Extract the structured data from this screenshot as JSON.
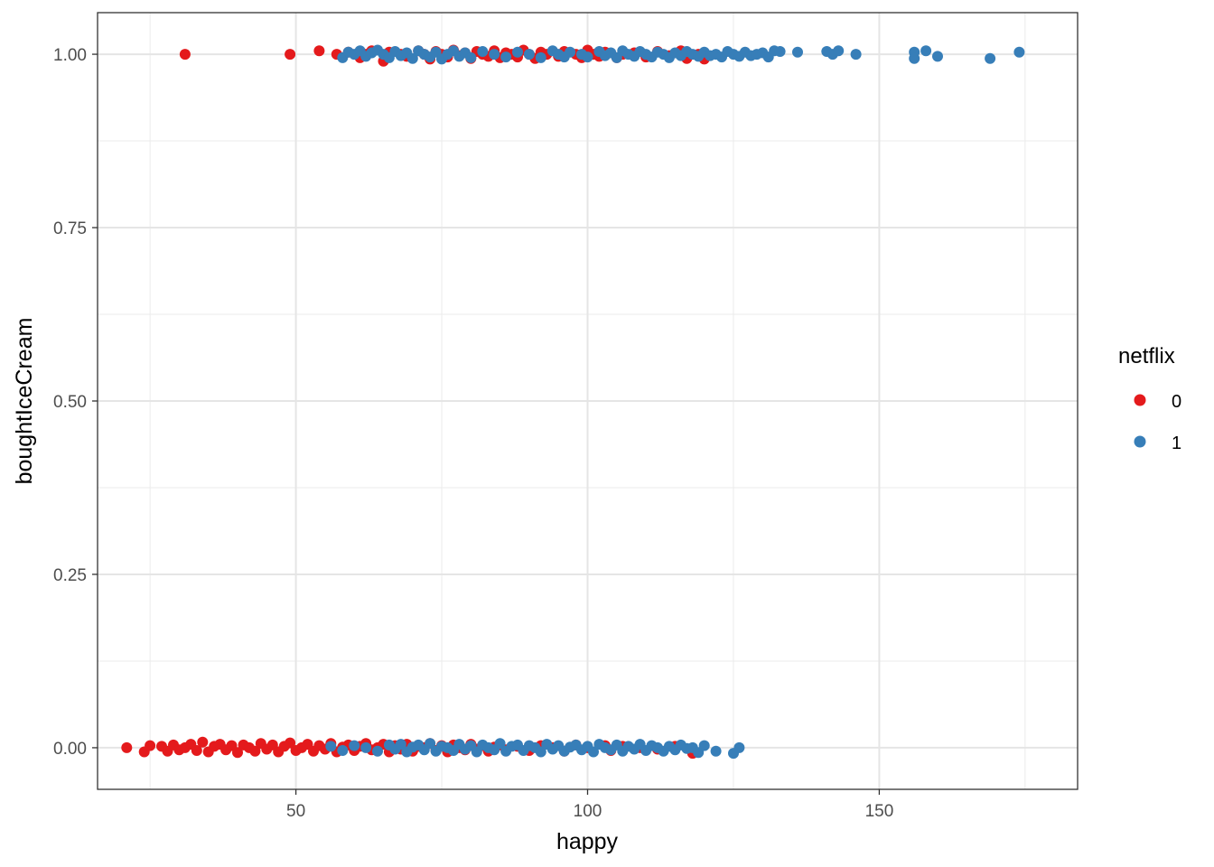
{
  "chart_data": {
    "type": "scatter",
    "title": "",
    "xlabel": "happy",
    "ylabel": "boughtIceCream",
    "xlim": [
      16,
      184
    ],
    "ylim": [
      -0.06,
      1.06
    ],
    "x_ticks": [
      50,
      100,
      150
    ],
    "x_tick_labels": [
      "50",
      "100",
      "150"
    ],
    "y_ticks": [
      0,
      0.25,
      0.5,
      0.75,
      1
    ],
    "y_tick_labels": [
      "0.00",
      "0.25",
      "0.50",
      "0.75",
      "1.00"
    ],
    "grid": true,
    "jitter_note_y": "points jittered slightly around 0 and 1",
    "legend": {
      "title": "netflix",
      "position": "right",
      "entries": [
        {
          "label": "0",
          "color": "#e41a1c"
        },
        {
          "label": "1",
          "color": "#377eb8"
        }
      ]
    },
    "series": [
      {
        "name": "0",
        "color": "#e41a1c",
        "points": [
          [
            31,
            1.0
          ],
          [
            49,
            1.0
          ],
          [
            54,
            1.005
          ],
          [
            57,
            1.0
          ],
          [
            59,
            1.003
          ],
          [
            61,
            0.995
          ],
          [
            62,
            1.0
          ],
          [
            63,
            1.005
          ],
          [
            65,
            0.99
          ],
          [
            66,
            1.003
          ],
          [
            68,
            1.0
          ],
          [
            69,
            0.997
          ],
          [
            71,
            1.005
          ],
          [
            72,
            1.0
          ],
          [
            73,
            0.993
          ],
          [
            74,
            1.004
          ],
          [
            75,
            1.0
          ],
          [
            76,
            0.996
          ],
          [
            77,
            1.006
          ],
          [
            78,
            0.998
          ],
          [
            79,
            1.002
          ],
          [
            80,
            0.994
          ],
          [
            81,
            1.004
          ],
          [
            82,
            1.0
          ],
          [
            83,
            0.997
          ],
          [
            84,
            1.005
          ],
          [
            85,
            0.995
          ],
          [
            86,
            1.002
          ],
          [
            87,
            1.0
          ],
          [
            88,
            0.996
          ],
          [
            89,
            1.006
          ],
          [
            90,
            1.0
          ],
          [
            91,
            0.994
          ],
          [
            92,
            1.003
          ],
          [
            93,
            1.0
          ],
          [
            95,
            0.997
          ],
          [
            96,
            1.004
          ],
          [
            98,
            1.0
          ],
          [
            99,
            0.995
          ],
          [
            100,
            1.006
          ],
          [
            101,
            1.0
          ],
          [
            102,
            0.997
          ],
          [
            103,
            1.003
          ],
          [
            105,
            0.995
          ],
          [
            106,
            1.0
          ],
          [
            108,
            1.002
          ],
          [
            110,
            0.996
          ],
          [
            112,
            1.004
          ],
          [
            114,
            0.998
          ],
          [
            116,
            1.005
          ],
          [
            117,
            0.994
          ],
          [
            119,
            1.0
          ],
          [
            120,
            0.993
          ],
          [
            21,
            0.0
          ],
          [
            24,
            -0.006
          ],
          [
            25,
            0.003
          ],
          [
            27,
            0.002
          ],
          [
            28,
            -0.005
          ],
          [
            29,
            0.004
          ],
          [
            30,
            -0.003
          ],
          [
            31,
            0.0
          ],
          [
            32,
            0.005
          ],
          [
            33,
            -0.004
          ],
          [
            34,
            0.008
          ],
          [
            35,
            -0.006
          ],
          [
            36,
            0.002
          ],
          [
            37,
            0.005
          ],
          [
            38,
            -0.003
          ],
          [
            39,
            0.003
          ],
          [
            40,
            -0.007
          ],
          [
            41,
            0.004
          ],
          [
            42,
            0.0
          ],
          [
            43,
            -0.005
          ],
          [
            44,
            0.006
          ],
          [
            45,
            -0.002
          ],
          [
            46,
            0.004
          ],
          [
            47,
            -0.006
          ],
          [
            48,
            0.002
          ],
          [
            49,
            0.007
          ],
          [
            50,
            -0.004
          ],
          [
            51,
            0.0
          ],
          [
            52,
            0.005
          ],
          [
            53,
            -0.005
          ],
          [
            54,
            0.003
          ],
          [
            55,
            -0.002
          ],
          [
            56,
            0.006
          ],
          [
            57,
            -0.006
          ],
          [
            58,
            0.001
          ],
          [
            59,
            0.004
          ],
          [
            60,
            -0.004
          ],
          [
            61,
            0.002
          ],
          [
            62,
            0.006
          ],
          [
            63,
            -0.003
          ],
          [
            64,
            0.0
          ],
          [
            65,
            0.005
          ],
          [
            66,
            -0.006
          ],
          [
            67,
            0.003
          ],
          [
            68,
            -0.002
          ],
          [
            69,
            0.005
          ],
          [
            70,
            -0.005
          ],
          [
            71,
            0.002
          ],
          [
            72,
            0.0
          ],
          [
            73,
            0.006
          ],
          [
            74,
            -0.004
          ],
          [
            75,
            0.003
          ],
          [
            76,
            -0.006
          ],
          [
            77,
            0.004
          ],
          [
            78,
            0.0
          ],
          [
            79,
            -0.003
          ],
          [
            80,
            0.005
          ],
          [
            81,
            -0.002
          ],
          [
            82,
            0.003
          ],
          [
            83,
            -0.005
          ],
          [
            84,
            0.001
          ],
          [
            85,
            0.004
          ],
          [
            86,
            -0.003
          ],
          [
            88,
            0.002
          ],
          [
            90,
            -0.004
          ],
          [
            92,
            0.003
          ],
          [
            94,
            0.0
          ],
          [
            96,
            -0.005
          ],
          [
            98,
            0.004
          ],
          [
            100,
            0.0
          ],
          [
            103,
            0.003
          ],
          [
            104,
            -0.004
          ],
          [
            106,
            0.002
          ],
          [
            109,
            0.0
          ],
          [
            112,
            -0.002
          ],
          [
            115,
            0.002
          ],
          [
            118,
            -0.008
          ]
        ]
      },
      {
        "name": "1",
        "color": "#377eb8",
        "points": [
          [
            58,
            0.995
          ],
          [
            59,
            1.003
          ],
          [
            60,
            1.0
          ],
          [
            61,
            1.005
          ],
          [
            62,
            0.997
          ],
          [
            63,
            1.002
          ],
          [
            64,
            1.006
          ],
          [
            65,
            1.0
          ],
          [
            66,
            0.995
          ],
          [
            67,
            1.004
          ],
          [
            68,
            0.998
          ],
          [
            69,
            1.002
          ],
          [
            70,
            0.994
          ],
          [
            71,
            1.005
          ],
          [
            72,
            1.0
          ],
          [
            73,
            0.996
          ],
          [
            74,
            1.003
          ],
          [
            75,
            0.993
          ],
          [
            76,
            1.0
          ],
          [
            77,
            1.005
          ],
          [
            78,
            0.997
          ],
          [
            79,
            1.002
          ],
          [
            80,
            0.995
          ],
          [
            82,
            1.004
          ],
          [
            84,
            1.0
          ],
          [
            86,
            0.996
          ],
          [
            88,
            1.003
          ],
          [
            90,
            1.0
          ],
          [
            92,
            0.995
          ],
          [
            94,
            1.005
          ],
          [
            95,
            1.0
          ],
          [
            96,
            0.996
          ],
          [
            97,
            1.003
          ],
          [
            99,
            1.0
          ],
          [
            100,
            0.996
          ],
          [
            102,
            1.004
          ],
          [
            103,
            0.998
          ],
          [
            104,
            1.002
          ],
          [
            105,
            0.995
          ],
          [
            106,
            1.005
          ],
          [
            107,
            1.0
          ],
          [
            108,
            0.997
          ],
          [
            109,
            1.004
          ],
          [
            110,
            1.0
          ],
          [
            111,
            0.996
          ],
          [
            112,
            1.003
          ],
          [
            113,
            1.0
          ],
          [
            114,
            0.995
          ],
          [
            115,
            1.002
          ],
          [
            116,
            0.998
          ],
          [
            117,
            1.004
          ],
          [
            118,
            1.0
          ],
          [
            119,
            0.997
          ],
          [
            120,
            1.003
          ],
          [
            121,
            0.998
          ],
          [
            122,
            1.0
          ],
          [
            123,
            0.996
          ],
          [
            124,
            1.004
          ],
          [
            125,
            1.0
          ],
          [
            126,
            0.997
          ],
          [
            127,
            1.003
          ],
          [
            128,
            0.998
          ],
          [
            129,
            1.0
          ],
          [
            130,
            1.002
          ],
          [
            131,
            0.996
          ],
          [
            132,
            1.005
          ],
          [
            133,
            1.004
          ],
          [
            136,
            1.003
          ],
          [
            141,
            1.004
          ],
          [
            142,
            1.0
          ],
          [
            143,
            1.005
          ],
          [
            146,
            1.0
          ],
          [
            156,
            1.003
          ],
          [
            156,
            0.994
          ],
          [
            158,
            1.005
          ],
          [
            160,
            0.997
          ],
          [
            169,
            0.994
          ],
          [
            174,
            1.003
          ],
          [
            56,
            0.002
          ],
          [
            58,
            -0.004
          ],
          [
            60,
            0.003
          ],
          [
            62,
            0.0
          ],
          [
            64,
            -0.005
          ],
          [
            66,
            0.004
          ],
          [
            67,
            -0.002
          ],
          [
            68,
            0.005
          ],
          [
            69,
            -0.006
          ],
          [
            70,
            0.001
          ],
          [
            71,
            0.004
          ],
          [
            72,
            -0.003
          ],
          [
            73,
            0.006
          ],
          [
            74,
            -0.005
          ],
          [
            75,
            0.002
          ],
          [
            76,
            0.0
          ],
          [
            77,
            -0.004
          ],
          [
            78,
            0.005
          ],
          [
            79,
            -0.002
          ],
          [
            80,
            0.003
          ],
          [
            81,
            -0.006
          ],
          [
            82,
            0.004
          ],
          [
            83,
            0.0
          ],
          [
            84,
            -0.003
          ],
          [
            85,
            0.006
          ],
          [
            86,
            -0.005
          ],
          [
            87,
            0.002
          ],
          [
            88,
            0.004
          ],
          [
            89,
            -0.004
          ],
          [
            90,
            0.003
          ],
          [
            91,
            0.0
          ],
          [
            92,
            -0.006
          ],
          [
            93,
            0.005
          ],
          [
            94,
            -0.002
          ],
          [
            95,
            0.003
          ],
          [
            96,
            -0.005
          ],
          [
            97,
            0.001
          ],
          [
            98,
            0.004
          ],
          [
            99,
            -0.003
          ],
          [
            100,
            0.002
          ],
          [
            101,
            -0.006
          ],
          [
            102,
            0.005
          ],
          [
            103,
            0.0
          ],
          [
            104,
            -0.003
          ],
          [
            105,
            0.004
          ],
          [
            106,
            -0.005
          ],
          [
            107,
            0.002
          ],
          [
            108,
            -0.002
          ],
          [
            109,
            0.005
          ],
          [
            110,
            -0.004
          ],
          [
            111,
            0.003
          ],
          [
            112,
            0.0
          ],
          [
            113,
            -0.005
          ],
          [
            114,
            0.002
          ],
          [
            115,
            -0.003
          ],
          [
            116,
            0.004
          ],
          [
            117,
            -0.001
          ],
          [
            118,
            0.0
          ],
          [
            119,
            -0.007
          ],
          [
            120,
            0.003
          ],
          [
            122,
            -0.005
          ],
          [
            125,
            -0.008
          ],
          [
            126,
            0.0
          ]
        ]
      }
    ]
  }
}
